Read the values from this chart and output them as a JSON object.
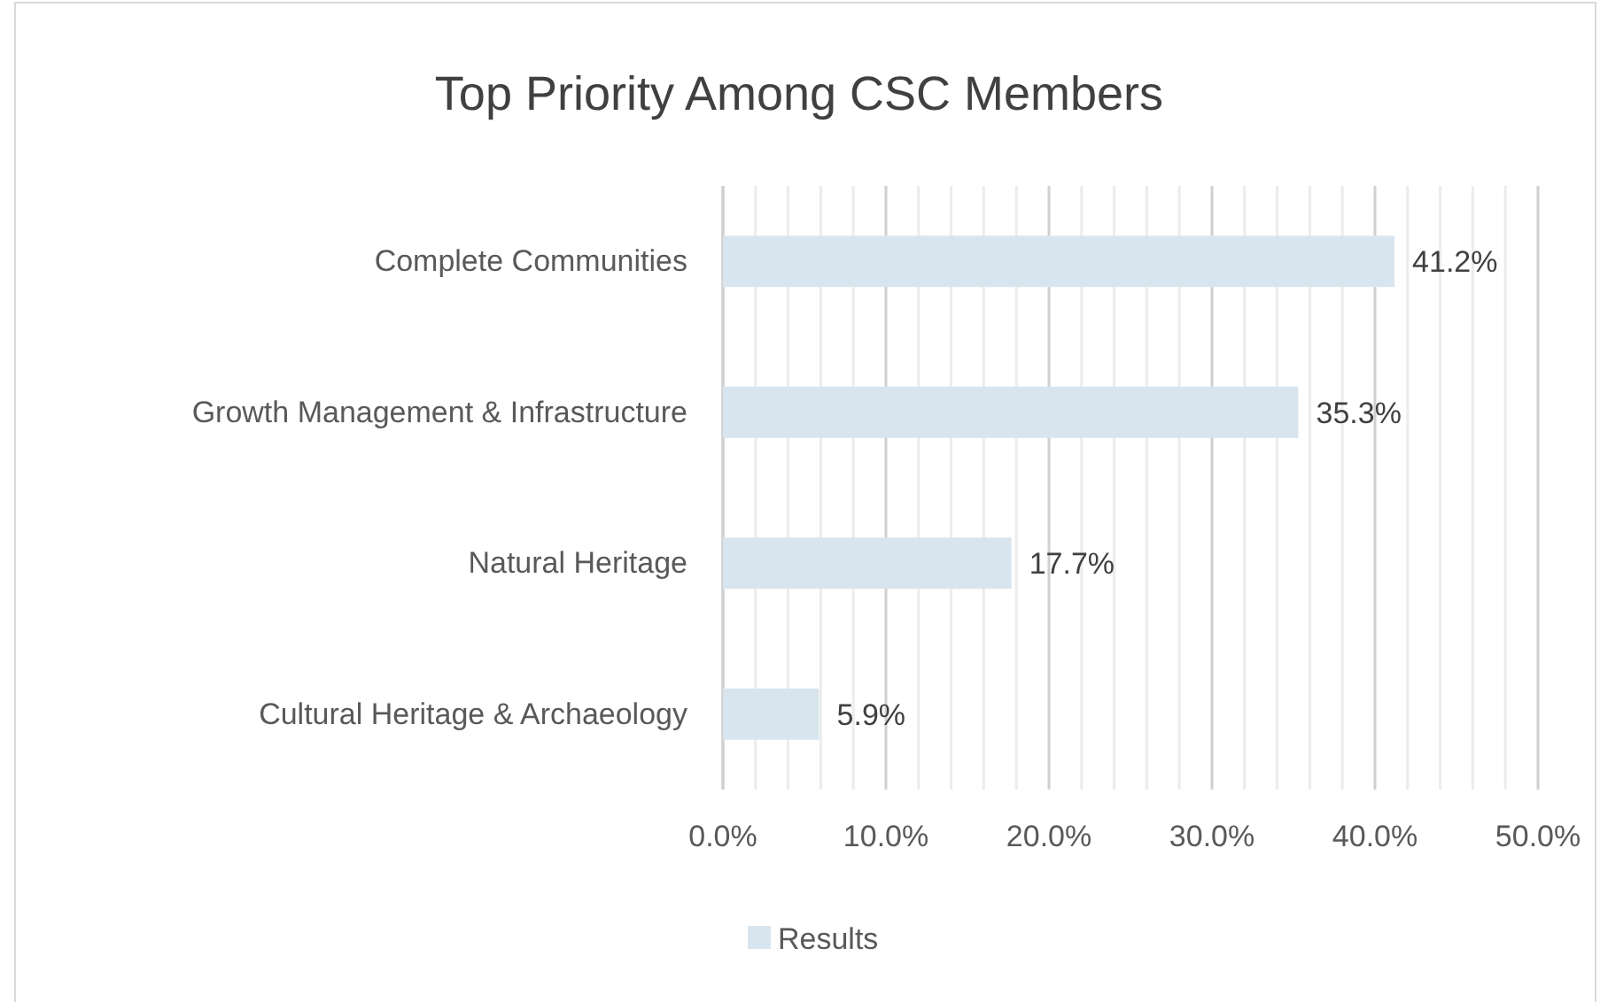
{
  "chart_data": {
    "type": "bar",
    "orientation": "horizontal",
    "title": "Top Priority Among CSC Members",
    "categories": [
      "Complete Communities",
      "Growth Management & Infrastructure",
      "Natural Heritage",
      "Cultural Heritage & Archaeology"
    ],
    "series": [
      {
        "name": "Results",
        "color": "#d9e5ee",
        "values": [
          41.2,
          35.3,
          17.7,
          5.9
        ],
        "value_labels": [
          "41.2%",
          "35.3%",
          "17.7%",
          "5.9%"
        ]
      }
    ],
    "xlim": [
      0,
      50
    ],
    "xticks": [
      {
        "value": 0,
        "label": "0.0%"
      },
      {
        "value": 2,
        "label": null
      },
      {
        "value": 4,
        "label": null
      },
      {
        "value": 6,
        "label": null
      },
      {
        "value": 8,
        "label": null
      },
      {
        "value": 10,
        "label": "10.0%"
      },
      {
        "value": 12,
        "label": null
      },
      {
        "value": 14,
        "label": null
      },
      {
        "value": 16,
        "label": null
      },
      {
        "value": 18,
        "label": null
      },
      {
        "value": 20,
        "label": "20.0%"
      },
      {
        "value": 22,
        "label": null
      },
      {
        "value": 24,
        "label": null
      },
      {
        "value": 26,
        "label": null
      },
      {
        "value": 28,
        "label": null
      },
      {
        "value": 30,
        "label": "30.0%"
      },
      {
        "value": 32,
        "label": null
      },
      {
        "value": 34,
        "label": null
      },
      {
        "value": 36,
        "label": null
      },
      {
        "value": 38,
        "label": null
      },
      {
        "value": 40,
        "label": "40.0%"
      },
      {
        "value": 42,
        "label": null
      },
      {
        "value": 44,
        "label": null
      },
      {
        "value": 46,
        "label": null
      },
      {
        "value": 48,
        "label": null
      },
      {
        "value": 50,
        "label": "50.0%"
      }
    ],
    "grid": "x",
    "legend": "bottom"
  }
}
